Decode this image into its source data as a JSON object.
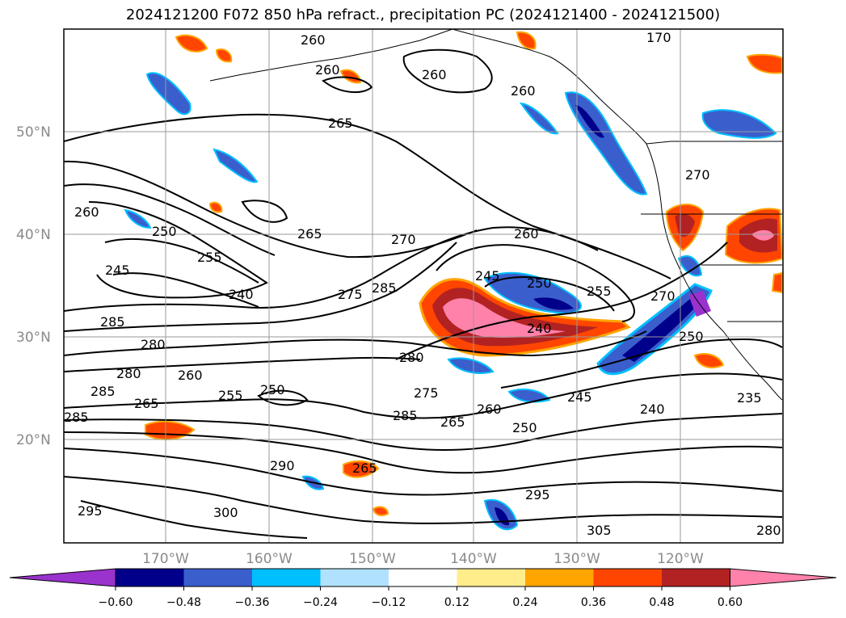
{
  "title": "2024121200 F072 850 hPa refract., precipitation PC (2024121400 - 2024121500)",
  "lat_labels": [
    "50°N",
    "40°N",
    "30°N",
    "20°N"
  ],
  "lon_labels": [
    "170°W",
    "160°W",
    "150°W",
    "140°W",
    "130°W",
    "120°W"
  ],
  "contour_labels": [
    "260",
    "260",
    "260",
    "260",
    "265",
    "260",
    "250",
    "255",
    "245",
    "240",
    "285",
    "280",
    "265",
    "270",
    "285",
    "275",
    "260",
    "245",
    "250",
    "255",
    "240",
    "270",
    "250",
    "280",
    "285",
    "280",
    "260",
    "265",
    "250",
    "255",
    "275",
    "285",
    "265",
    "260",
    "250",
    "245",
    "240",
    "235",
    "290",
    "265",
    "295",
    "300",
    "295",
    "305",
    "280",
    "285",
    "270",
    "170"
  ],
  "colorbar": {
    "colors": [
      "#9a32cd",
      "#00008b",
      "#3a5fcd",
      "#00bfff",
      "#b0e2ff",
      "#ffffff",
      "#ffec8b",
      "#ffa500",
      "#ff4500",
      "#b22222",
      "#ff82ab"
    ],
    "ticks": [
      "−0.60",
      "−0.48",
      "−0.36",
      "−0.24",
      "−0.12",
      "0.12",
      "0.24",
      "0.36",
      "0.48",
      "0.60"
    ]
  }
}
